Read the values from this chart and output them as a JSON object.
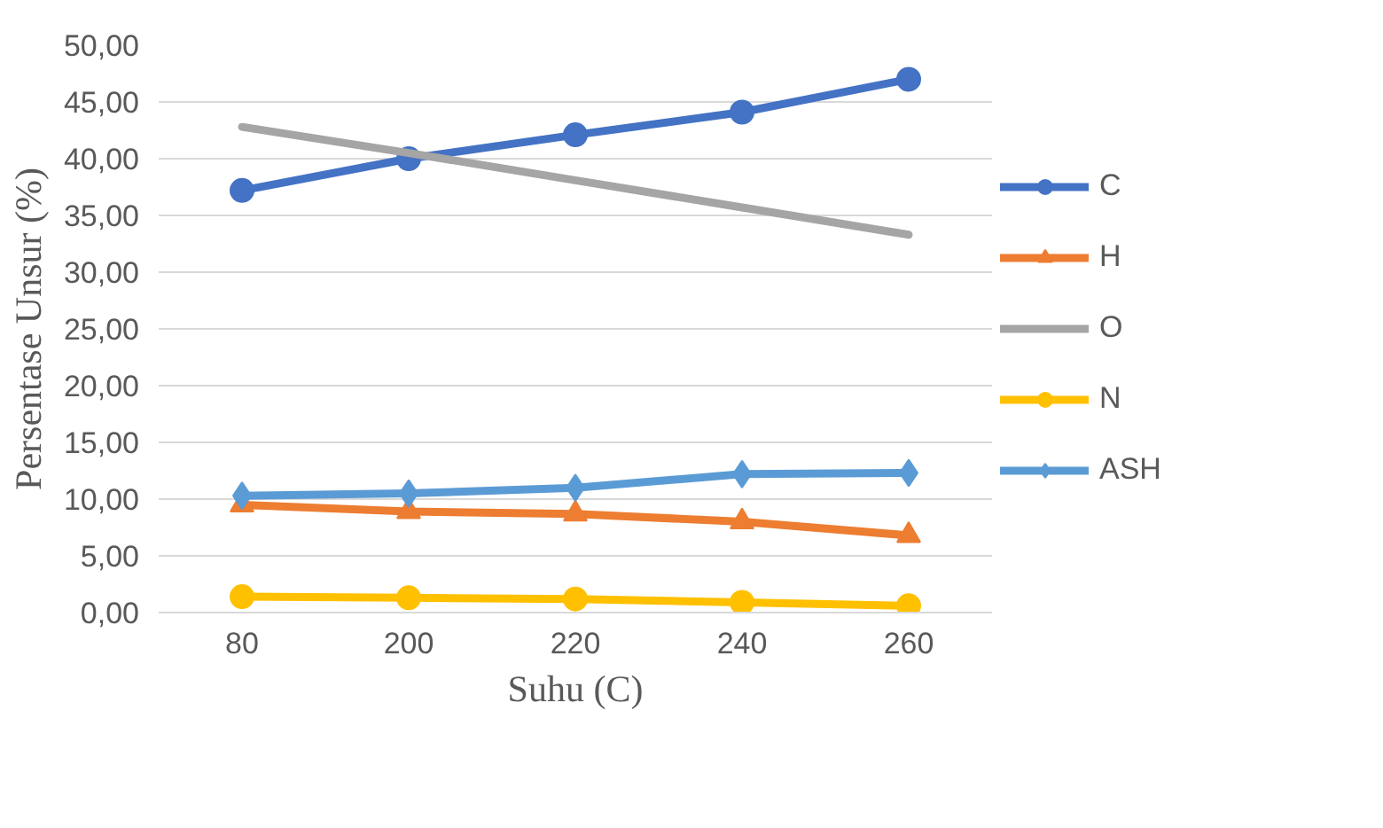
{
  "chart_data": {
    "type": "line",
    "xlabel": "Suhu (C)",
    "ylabel": "Persentase Unsur (%)",
    "categories": [
      "80",
      "200",
      "220",
      "240",
      "260"
    ],
    "series": [
      {
        "name": "C",
        "color": "#4472c4",
        "marker": "circle",
        "values": [
          37.2,
          40.0,
          42.1,
          44.1,
          47.0
        ]
      },
      {
        "name": "H",
        "color": "#ed7d31",
        "marker": "triangle",
        "values": [
          9.5,
          8.9,
          8.7,
          8.0,
          6.8
        ]
      },
      {
        "name": "O",
        "color": "#a5a5a5",
        "marker": "none",
        "values": [
          42.8,
          40.5,
          38.1,
          35.7,
          33.3
        ]
      },
      {
        "name": "N",
        "color": "#ffc000",
        "marker": "circle",
        "values": [
          1.4,
          1.3,
          1.2,
          0.9,
          0.6
        ]
      },
      {
        "name": "ASH",
        "color": "#5b9bd5",
        "marker": "diamond",
        "values": [
          10.3,
          10.5,
          11.0,
          12.2,
          12.3
        ]
      }
    ],
    "ylim": [
      0,
      50
    ],
    "yticks": [
      {
        "value": 0,
        "label": "0,00"
      },
      {
        "value": 5,
        "label": "5,00"
      },
      {
        "value": 10,
        "label": "10,00"
      },
      {
        "value": 15,
        "label": "15,00"
      },
      {
        "value": 20,
        "label": "20,00"
      },
      {
        "value": 25,
        "label": "25,00"
      },
      {
        "value": 30,
        "label": "30,00"
      },
      {
        "value": 35,
        "label": "35,00"
      },
      {
        "value": 40,
        "label": "40,00"
      },
      {
        "value": 45,
        "label": "45,00"
      },
      {
        "value": 50,
        "label": "50,00"
      }
    ],
    "grid": "y",
    "legend": "right"
  }
}
